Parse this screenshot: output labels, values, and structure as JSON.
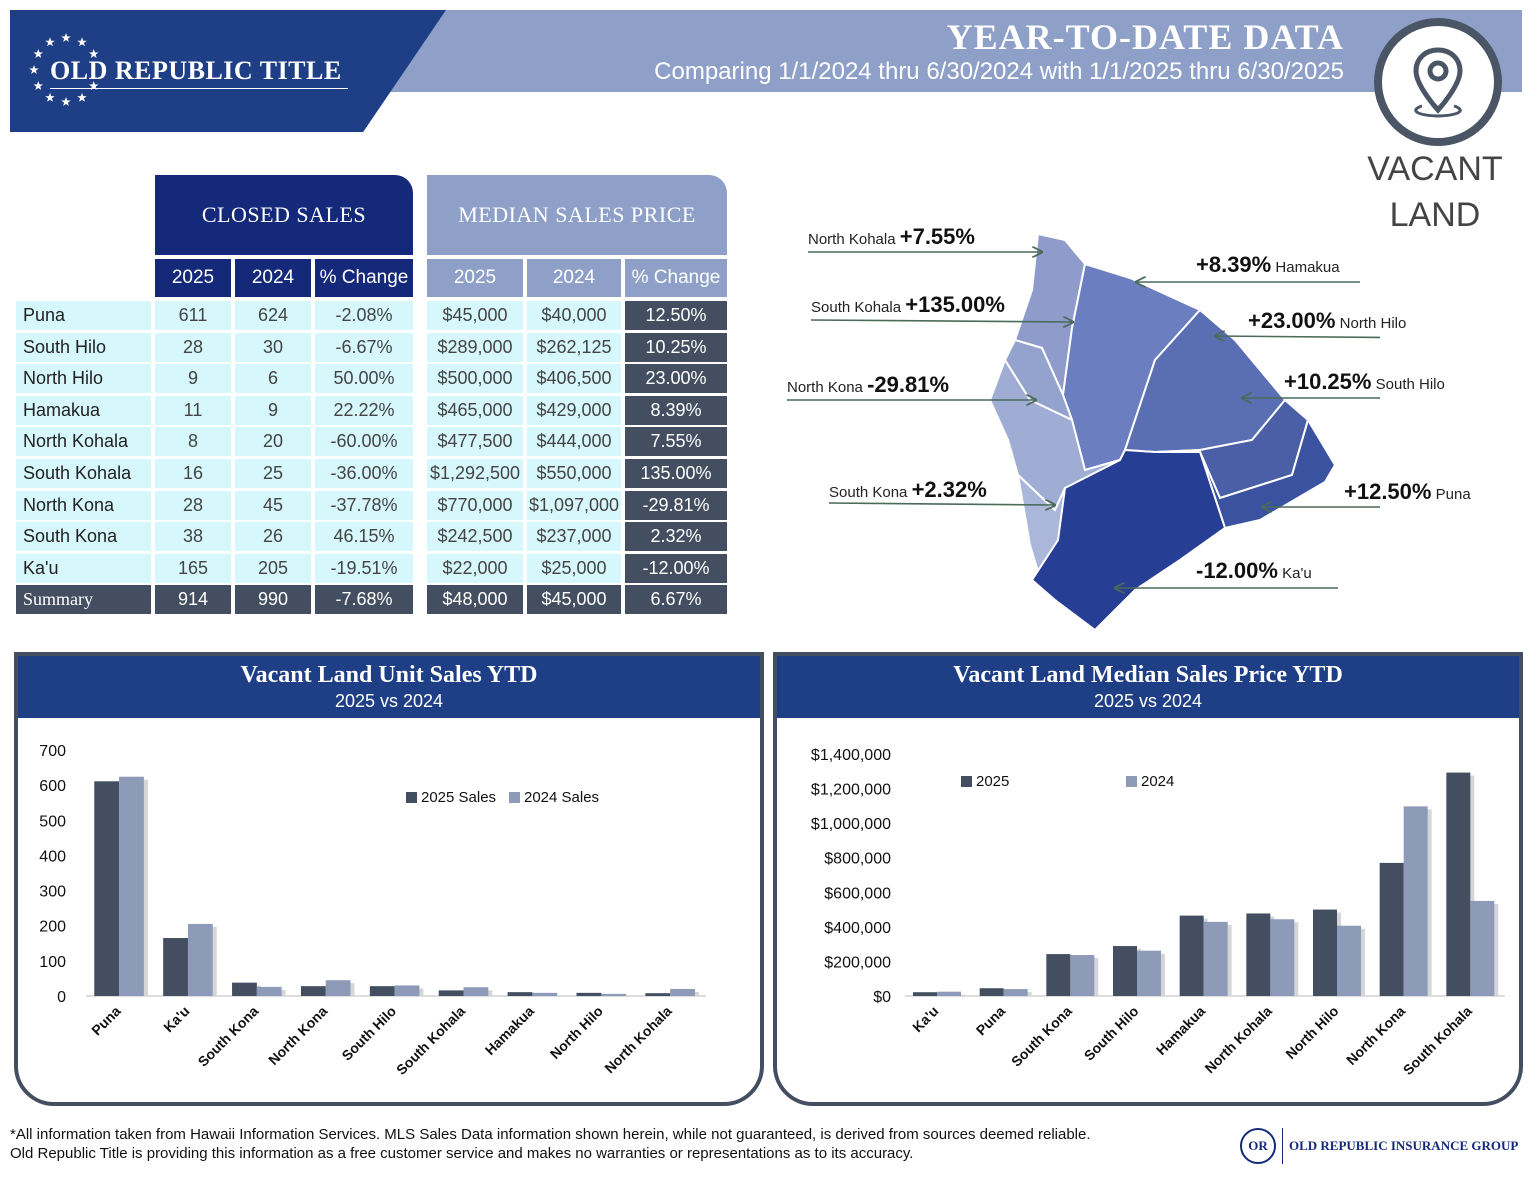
{
  "header": {
    "logo": "OLD REPUBLIC TITLE",
    "title": "YEAR-TO-DATE DATA",
    "subtitle": "Comparing 1/1/2024 thru 6/30/2024 with 1/1/2025 thru 6/30/2025",
    "badge_line1": "VACANT",
    "badge_line2": "LAND",
    "badge_icon": "location-pin-icon"
  },
  "tables": {
    "closed_sales_title": "CLOSED SALES",
    "median_price_title": "MEDIAN SALES PRICE",
    "col_2025": "2025",
    "col_2024": "2024",
    "col_change": "% Change",
    "rows": [
      {
        "area": "Puna",
        "cs25": "611",
        "cs24": "624",
        "csch": "-2.08%",
        "mp25": "$45,000",
        "mp24": "$40,000",
        "mpch": "12.50%"
      },
      {
        "area": "South Hilo",
        "cs25": "28",
        "cs24": "30",
        "csch": "-6.67%",
        "mp25": "$289,000",
        "mp24": "$262,125",
        "mpch": "10.25%"
      },
      {
        "area": "North Hilo",
        "cs25": "9",
        "cs24": "6",
        "csch": "50.00%",
        "mp25": "$500,000",
        "mp24": "$406,500",
        "mpch": "23.00%"
      },
      {
        "area": "Hamakua",
        "cs25": "11",
        "cs24": "9",
        "csch": "22.22%",
        "mp25": "$465,000",
        "mp24": "$429,000",
        "mpch": "8.39%"
      },
      {
        "area": "North Kohala",
        "cs25": "8",
        "cs24": "20",
        "csch": "-60.00%",
        "mp25": "$477,500",
        "mp24": "$444,000",
        "mpch": "7.55%"
      },
      {
        "area": "South Kohala",
        "cs25": "16",
        "cs24": "25",
        "csch": "-36.00%",
        "mp25": "$1,292,500",
        "mp24": "$550,000",
        "mpch": "135.00%"
      },
      {
        "area": "North Kona",
        "cs25": "28",
        "cs24": "45",
        "csch": "-37.78%",
        "mp25": "$770,000",
        "mp24": "$1,097,000",
        "mpch": "-29.81%"
      },
      {
        "area": "South Kona",
        "cs25": "38",
        "cs24": "26",
        "csch": "46.15%",
        "mp25": "$242,500",
        "mp24": "$237,000",
        "mpch": "2.32%"
      },
      {
        "area": "Ka'u",
        "cs25": "165",
        "cs24": "205",
        "csch": "-19.51%",
        "mp25": "$22,000",
        "mp24": "$25,000",
        "mpch": "-12.00%"
      }
    ],
    "summary": {
      "area": "Summary",
      "cs25": "914",
      "cs24": "990",
      "csch": "-7.68%",
      "mp25": "$48,000",
      "mp24": "$45,000",
      "mpch": "6.67%"
    }
  },
  "map": {
    "labels": [
      {
        "name": "North Kohala",
        "pct": "+7.55%"
      },
      {
        "name": "South Kohala",
        "pct": "+135.00%"
      },
      {
        "name": "North Kona",
        "pct": "-29.81%"
      },
      {
        "name": "South Kona",
        "pct": "+2.32%"
      },
      {
        "name": "Hamakua",
        "pct": "+8.39%"
      },
      {
        "name": "North Hilo",
        "pct": "+23.00%"
      },
      {
        "name": "South Hilo",
        "pct": "+10.25%"
      },
      {
        "name": "Puna",
        "pct": "+12.50%"
      },
      {
        "name": "Ka'u",
        "pct": "-12.00%"
      }
    ]
  },
  "chart_data": [
    {
      "type": "bar",
      "title": "Vacant Land Unit Sales YTD",
      "subtitle": "2025 vs 2024",
      "categories": [
        "Puna",
        "Ka'u",
        "South Kona",
        "North Kona",
        "South Hilo",
        "South Kohala",
        "Hamakua",
        "North Hilo",
        "North Kohala"
      ],
      "series": [
        {
          "name": "2025 Sales",
          "color": "#434f60",
          "values": [
            611,
            165,
            38,
            28,
            28,
            16,
            11,
            9,
            8
          ]
        },
        {
          "name": "2024 Sales",
          "color": "#8e9bb8",
          "values": [
            624,
            205,
            26,
            45,
            30,
            25,
            9,
            6,
            20
          ]
        }
      ],
      "yticks": [
        "700",
        "600",
        "500",
        "400",
        "300",
        "200",
        "100",
        "0"
      ],
      "ylim": [
        0,
        700
      ],
      "legend": "top-right",
      "grid": false
    },
    {
      "type": "bar",
      "title": "Vacant Land Median Sales Price YTD",
      "subtitle": "2025 vs 2024",
      "categories": [
        "Ka'u",
        "Puna",
        "South Kona",
        "South Hilo",
        "Hamakua",
        "North Kohala",
        "North Hilo",
        "North Kona",
        "South Kohala"
      ],
      "series": [
        {
          "name": "2025",
          "color": "#434f60",
          "values": [
            22000,
            45000,
            242500,
            289000,
            465000,
            477500,
            500000,
            770000,
            1292500
          ]
        },
        {
          "name": "2024",
          "color": "#8e9bb8",
          "values": [
            25000,
            40000,
            237000,
            262125,
            429000,
            444000,
            406500,
            1097000,
            550000
          ]
        }
      ],
      "yticks": [
        "$1,400,000",
        "$1,200,000",
        "$1,000,000",
        "$800,000",
        "$600,000",
        "$400,000",
        "$200,000",
        "$0"
      ],
      "ylim": [
        0,
        1400000
      ],
      "legend": "top-left",
      "grid": false
    }
  ],
  "footer": {
    "line1": "*All information taken from Hawaii Information Services.  MLS Sales Data information shown herein, while not guaranteed,  is derived from sources deemed reliable.",
    "line2": "Old Republic Title is providing this information as a free customer service and makes no warranties or representations as to its accuracy.",
    "org_logo": "OLD REPUBLIC INSURANCE GROUP"
  }
}
